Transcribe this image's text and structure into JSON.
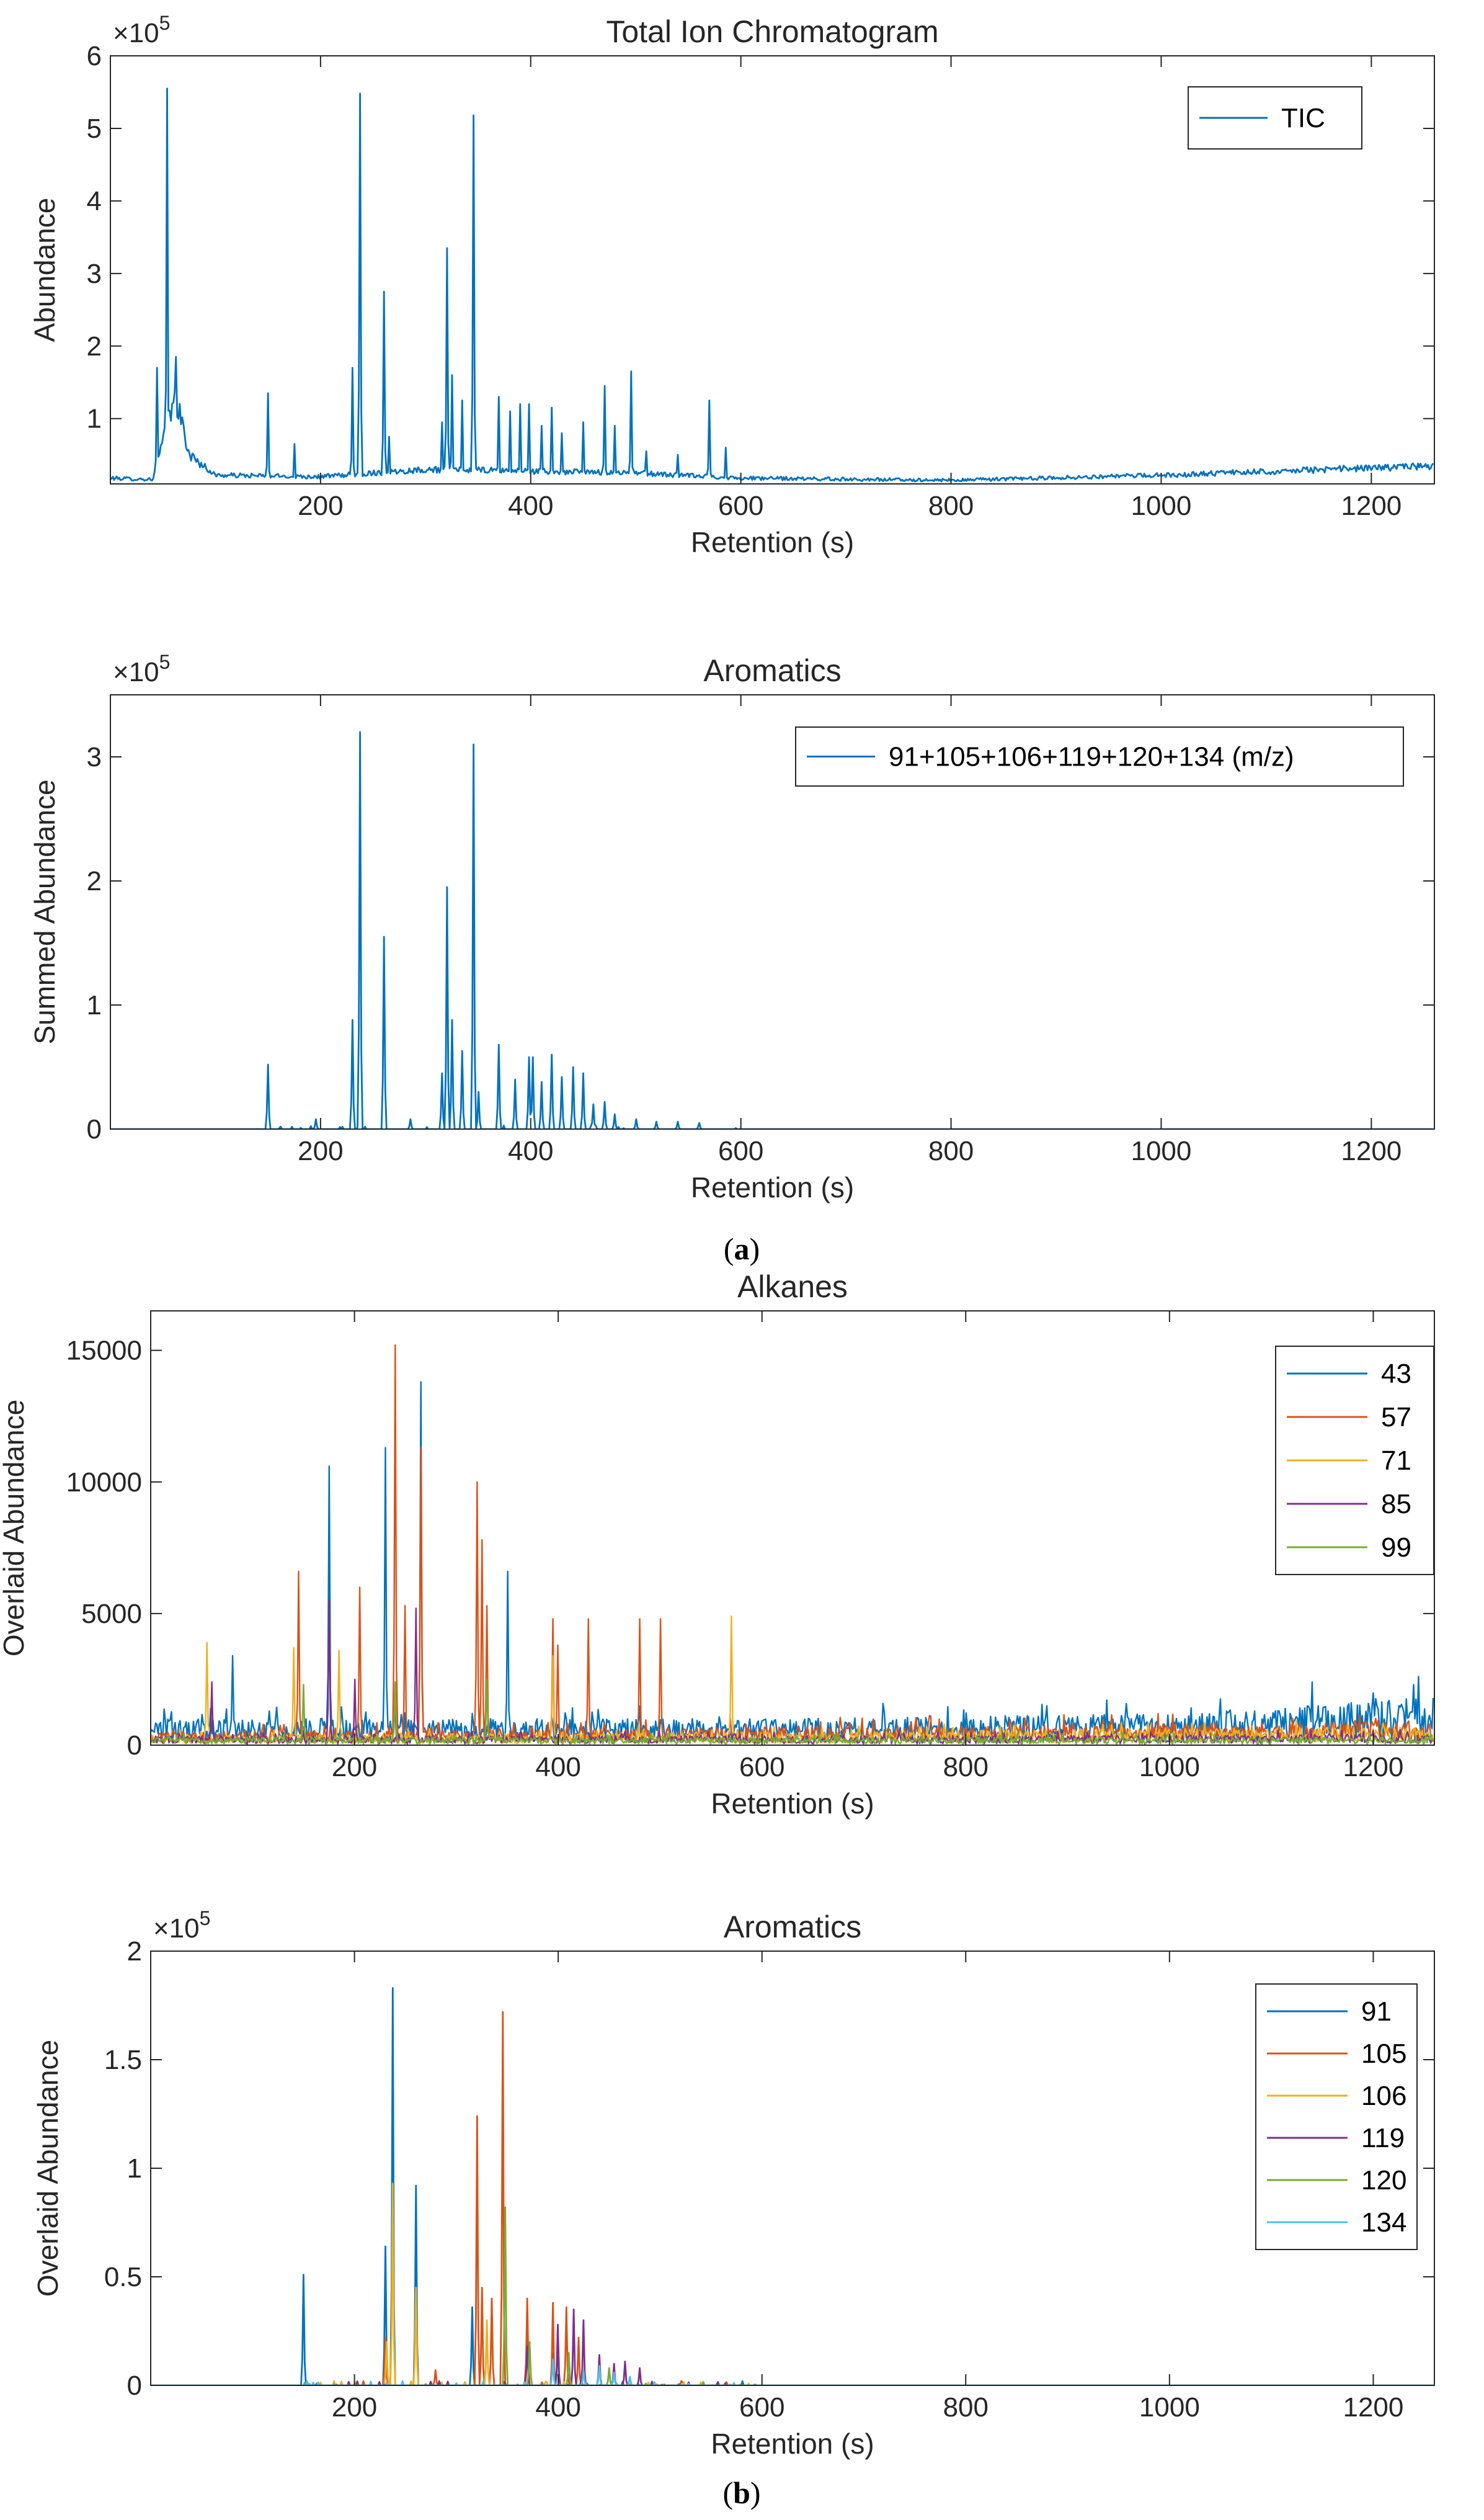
{
  "panel_labels": [
    "(a)",
    "(b)"
  ],
  "panels": [
    {
      "title": "Total Ion Chromatogram",
      "xlabel": "Retention (s)",
      "ylabel": "Abundance",
      "exponent": "×10",
      "exponent_power": "5",
      "xlim": [
        0,
        1260
      ],
      "ylim": [
        0.1,
        6
      ],
      "yticks": [
        1,
        2,
        3,
        4,
        5,
        6
      ],
      "xticks": [
        200,
        400,
        600,
        800,
        1000,
        1200
      ],
      "legend": [
        "TIC"
      ]
    },
    {
      "title": "Aromatics",
      "xlabel": "Retention (s)",
      "ylabel": "Summed Abundance",
      "exponent": "×10",
      "exponent_power": "5",
      "xlim": [
        0,
        1260
      ],
      "ylim": [
        0,
        3.5
      ],
      "yticks": [
        0,
        1,
        2,
        3
      ],
      "xticks": [
        200,
        400,
        600,
        800,
        1000,
        1200
      ],
      "legend": [
        "91+105+106+119+120+134 (m/z)"
      ]
    },
    {
      "title": "Alkanes",
      "xlabel": "Retention (s)",
      "ylabel": "Overlaid Abundance",
      "exponent": "",
      "exponent_power": "",
      "xlim": [
        0,
        1260
      ],
      "ylim": [
        0,
        16500
      ],
      "yticks": [
        0,
        5000,
        10000,
        15000
      ],
      "xticks": [
        200,
        400,
        600,
        800,
        1000,
        1200
      ],
      "legend": [
        "43",
        "57",
        "71",
        "85",
        "99"
      ]
    },
    {
      "title": "Aromatics",
      "xlabel": "Retention (s)",
      "ylabel": "Overlaid Abundance",
      "exponent": "×10",
      "exponent_power": "5",
      "xlim": [
        0,
        1260
      ],
      "ylim": [
        0,
        2
      ],
      "yticks": [
        0,
        0.5,
        1,
        1.5,
        2
      ],
      "xticks": [
        200,
        400,
        600,
        800,
        1000,
        1200
      ],
      "legend": [
        "91",
        "105",
        "106",
        "119",
        "120",
        "134"
      ]
    }
  ],
  "colors": {
    "c1": "#0072BD",
    "c2": "#D95319",
    "c3": "#EDB120",
    "c4": "#7E2F8E",
    "c5": "#77AC30",
    "c6": "#4DBEEE"
  },
  "chart_data": [
    {
      "type": "line",
      "title": "Total Ion Chromatogram",
      "xlabel": "Retention (s)",
      "ylabel": "Abundance",
      "y_scale": "×10^5",
      "xlim": [
        0,
        1260
      ],
      "ylim": [
        0.1,
        6
      ],
      "baseline": [
        [
          0,
          0.18
        ],
        [
          40,
          0.16
        ],
        [
          62,
          1.3
        ],
        [
          75,
          0.5
        ],
        [
          100,
          0.22
        ],
        [
          200,
          0.2
        ],
        [
          300,
          0.3
        ],
        [
          500,
          0.25
        ],
        [
          600,
          0.18
        ],
        [
          800,
          0.15
        ],
        [
          1000,
          0.22
        ],
        [
          1260,
          0.35
        ]
      ],
      "series": [
        {
          "name": "TIC",
          "peaks": [
            [
              44,
              1.7
            ],
            [
              54,
              5.55
            ],
            [
              62,
              1.85
            ],
            [
              150,
              1.35
            ],
            [
              175,
              0.65
            ],
            [
              230,
              1.7
            ],
            [
              237,
              5.48
            ],
            [
              260,
              2.75
            ],
            [
              265,
              0.75
            ],
            [
              315,
              0.95
            ],
            [
              320,
              3.35
            ],
            [
              325,
              1.6
            ],
            [
              335,
              1.25
            ],
            [
              345,
              5.18
            ],
            [
              370,
              1.3
            ],
            [
              380,
              1.1
            ],
            [
              390,
              1.2
            ],
            [
              398,
              1.2
            ],
            [
              410,
              0.9
            ],
            [
              420,
              1.15
            ],
            [
              430,
              0.8
            ],
            [
              450,
              0.95
            ],
            [
              470,
              1.45
            ],
            [
              480,
              0.9
            ],
            [
              495,
              1.65
            ],
            [
              510,
              0.55
            ],
            [
              540,
              0.5
            ],
            [
              570,
              1.25
            ],
            [
              585,
              0.6
            ]
          ]
        }
      ]
    },
    {
      "type": "line",
      "title": "Aromatics",
      "xlabel": "Retention (s)",
      "ylabel": "Summed Abundance",
      "y_scale": "×10^5",
      "xlim": [
        0,
        1260
      ],
      "ylim": [
        0,
        3.5
      ],
      "series": [
        {
          "name": "91+105+106+119+120+134 (m/z)",
          "peaks": [
            [
              150,
              0.52
            ],
            [
              195,
              0.08
            ],
            [
              230,
              0.88
            ],
            [
              237,
              3.2
            ],
            [
              260,
              1.55
            ],
            [
              285,
              0.08
            ],
            [
              315,
              0.45
            ],
            [
              320,
              1.95
            ],
            [
              325,
              0.88
            ],
            [
              335,
              0.63
            ],
            [
              345,
              3.1
            ],
            [
              350,
              0.3
            ],
            [
              370,
              0.68
            ],
            [
              385,
              0.4
            ],
            [
              398,
              0.58
            ],
            [
              402,
              0.58
            ],
            [
              410,
              0.38
            ],
            [
              420,
              0.6
            ],
            [
              430,
              0.42
            ],
            [
              440,
              0.5
            ],
            [
              450,
              0.45
            ],
            [
              460,
              0.2
            ],
            [
              470,
              0.22
            ],
            [
              480,
              0.12
            ],
            [
              500,
              0.08
            ],
            [
              520,
              0.06
            ],
            [
              540,
              0.06
            ],
            [
              560,
              0.05
            ]
          ]
        }
      ]
    },
    {
      "type": "line",
      "title": "Alkanes",
      "xlabel": "Retention (s)",
      "ylabel": "Overlaid Abundance",
      "xlim": [
        0,
        1260
      ],
      "ylim": [
        0,
        16500
      ],
      "series": [
        {
          "name": "43",
          "noise": [
            [
              0,
              1000
            ],
            [
              600,
              1000
            ],
            [
              1000,
              1200
            ],
            [
              1260,
              1800
            ]
          ],
          "peaks": [
            [
              80,
              3400
            ],
            [
              175,
              10600
            ],
            [
              230,
              11300
            ],
            [
              265,
              13800
            ],
            [
              350,
              6600
            ],
            [
              1140,
              2400
            ],
            [
              1240,
              2300
            ]
          ]
        },
        {
          "name": "57",
          "noise": [
            [
              0,
              500
            ],
            [
              600,
              700
            ],
            [
              1260,
              900
            ]
          ],
          "peaks": [
            [
              145,
              6600
            ],
            [
              205,
              6000
            ],
            [
              240,
              15200
            ],
            [
              250,
              5300
            ],
            [
              265,
              11300
            ],
            [
              320,
              10000
            ],
            [
              325,
              7800
            ],
            [
              330,
              5300
            ],
            [
              395,
              4800
            ],
            [
              400,
              3800
            ],
            [
              430,
              4800
            ],
            [
              480,
              4800
            ],
            [
              500,
              4800
            ]
          ]
        },
        {
          "name": "71",
          "noise": [
            [
              0,
              400
            ],
            [
              600,
              500
            ],
            [
              1260,
              700
            ]
          ],
          "peaks": [
            [
              55,
              3900
            ],
            [
              140,
              3700
            ],
            [
              185,
              3600
            ],
            [
              395,
              3400
            ],
            [
              570,
              4900
            ]
          ]
        },
        {
          "name": "85",
          "noise": [
            [
              0,
              350
            ],
            [
              600,
              350
            ],
            [
              1260,
              400
            ]
          ],
          "peaks": [
            [
              60,
              2400
            ],
            [
              175,
              5500
            ],
            [
              200,
              2500
            ],
            [
              260,
              5200
            ]
          ]
        },
        {
          "name": "99",
          "noise": [
            [
              0,
              300
            ],
            [
              600,
              300
            ],
            [
              1260,
              300
            ]
          ],
          "peaks": [
            [
              150,
              2300
            ],
            [
              240,
              2400
            ],
            [
              330,
              2500
            ]
          ]
        }
      ]
    },
    {
      "type": "line",
      "title": "Aromatics",
      "xlabel": "Retention (s)",
      "ylabel": "Overlaid Abundance",
      "y_scale": "×10^5",
      "xlim": [
        0,
        1260
      ],
      "ylim": [
        0,
        2
      ],
      "series": [
        {
          "name": "91",
          "peaks": [
            [
              150,
              0.51
            ],
            [
              230,
              0.64
            ],
            [
              237,
              1.83
            ],
            [
              260,
              0.92
            ],
            [
              315,
              0.36
            ],
            [
              395,
              0.15
            ],
            [
              400,
              0.2
            ]
          ]
        },
        {
          "name": "105",
          "peaks": [
            [
              230,
              0.22
            ],
            [
              280,
              0.07
            ],
            [
              320,
              1.24
            ],
            [
              325,
              0.45
            ],
            [
              335,
              0.4
            ],
            [
              345,
              1.72
            ],
            [
              370,
              0.4
            ],
            [
              395,
              0.38
            ],
            [
              408,
              0.36
            ],
            [
              420,
              0.22
            ]
          ]
        },
        {
          "name": "106",
          "peaks": [
            [
              232,
              0.2
            ],
            [
              238,
              0.93
            ],
            [
              260,
              0.45
            ],
            [
              330,
              0.3
            ]
          ]
        },
        {
          "name": "119",
          "peaks": [
            [
              370,
              0.18
            ],
            [
              400,
              0.28
            ],
            [
              415,
              0.35
            ],
            [
              425,
              0.3
            ],
            [
              440,
              0.14
            ],
            [
              455,
              0.1
            ],
            [
              465,
              0.11
            ],
            [
              480,
              0.08
            ]
          ]
        },
        {
          "name": "120",
          "peaks": [
            [
              348,
              0.82
            ],
            [
              372,
              0.2
            ],
            [
              410,
              0.15
            ],
            [
              450,
              0.08
            ]
          ]
        },
        {
          "name": "134",
          "peaks": [
            [
              395,
              0.12
            ],
            [
              425,
              0.07
            ],
            [
              440,
              0.09
            ],
            [
              455,
              0.06
            ],
            [
              470,
              0.04
            ]
          ]
        }
      ]
    }
  ]
}
